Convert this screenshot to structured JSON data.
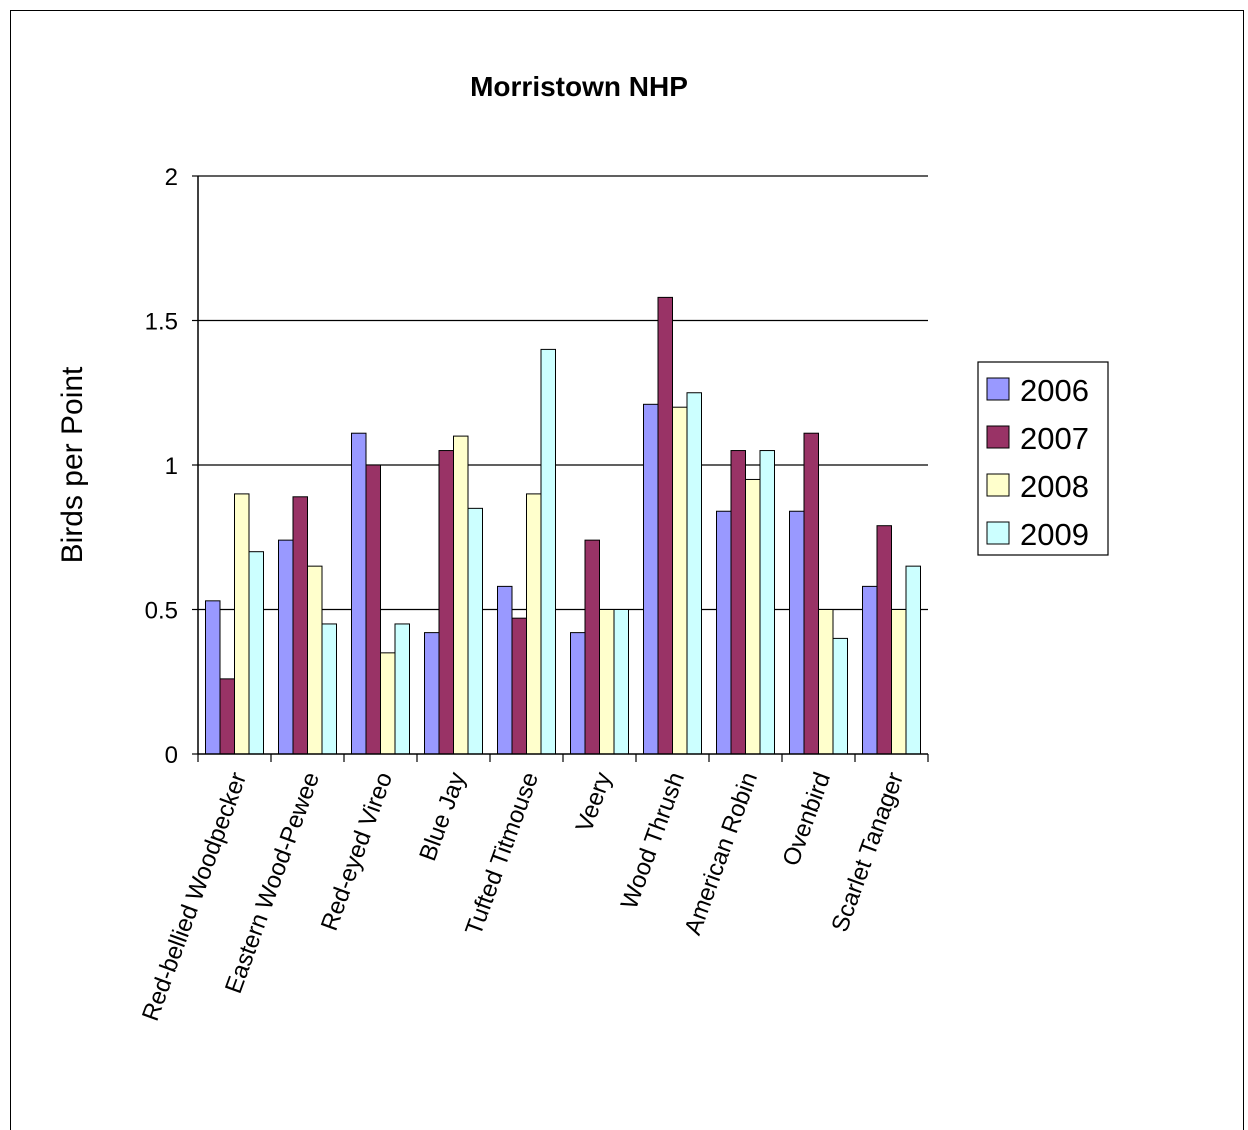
{
  "chart_data": {
    "type": "bar",
    "title": "Morristown NHP",
    "xlabel": "",
    "ylabel": "Birds per Point",
    "ylim": [
      0,
      2
    ],
    "yticks": [
      "0",
      "0.5",
      "1",
      "1.5",
      "2"
    ],
    "ytick_values": [
      0,
      0.5,
      1,
      1.5,
      2
    ],
    "grid": true,
    "legend_position": "right",
    "categories": [
      "Red-bellied Woodpecker",
      "Eastern Wood-Pewee",
      "Red-eyed Vireo",
      "Blue Jay",
      "Tufted Titmouse",
      "Veery",
      "Wood Thrush",
      "American Robin",
      "Ovenbird",
      "Scarlet Tanager"
    ],
    "series": [
      {
        "name": "2006",
        "color": "#9999ff",
        "values": [
          0.53,
          0.74,
          1.11,
          0.42,
          0.58,
          0.42,
          1.21,
          0.84,
          0.84,
          0.58
        ]
      },
      {
        "name": "2007",
        "color": "#993366",
        "values": [
          0.26,
          0.89,
          1.0,
          1.05,
          0.47,
          0.74,
          1.58,
          1.05,
          1.11,
          0.79
        ]
      },
      {
        "name": "2008",
        "color": "#ffffcc",
        "values": [
          0.9,
          0.65,
          0.35,
          1.1,
          0.9,
          0.5,
          1.2,
          0.95,
          0.5,
          0.5
        ]
      },
      {
        "name": "2009",
        "color": "#ccffff",
        "values": [
          0.7,
          0.45,
          0.45,
          0.85,
          1.4,
          0.5,
          1.25,
          1.05,
          0.4,
          0.65
        ]
      }
    ]
  }
}
